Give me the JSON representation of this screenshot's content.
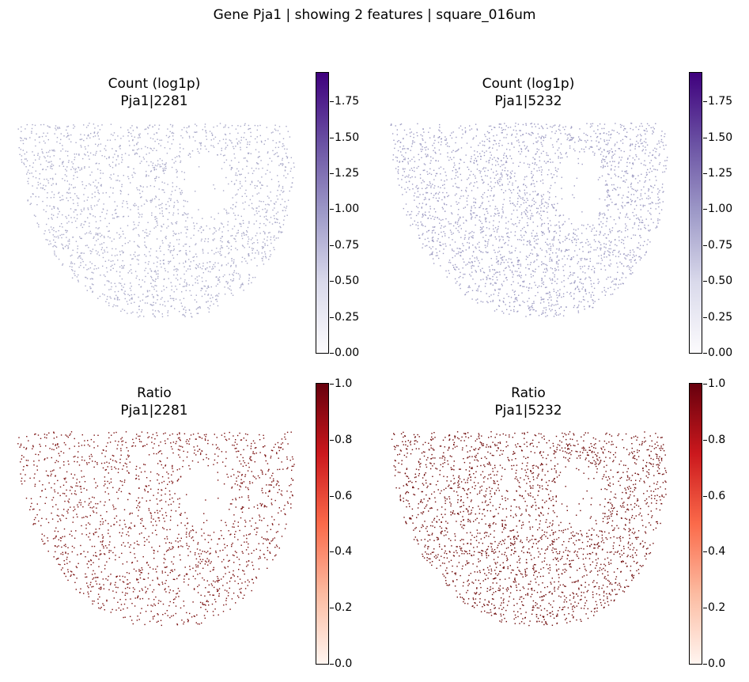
{
  "figure": {
    "suptitle": "Gene Pja1 | showing 2 features | square_016um"
  },
  "panels": [
    {
      "title_line1": "Count (log1p)",
      "title_line2": "Pja1|2281",
      "colormap": "purples",
      "colors": [
        "#fcfbfd",
        "#dadaeb",
        "#9e9ac8",
        "#6a51a3",
        "#3f007d"
      ],
      "dot_color": "#a9a9c8",
      "density": 0.55,
      "enriched_arc": false,
      "colorbar": {
        "min": 0.0,
        "max": 1.95,
        "ticks": [
          "0.00",
          "0.25",
          "0.50",
          "0.75",
          "1.00",
          "1.25",
          "1.50",
          "1.75"
        ],
        "tick_values": [
          0,
          0.25,
          0.5,
          0.75,
          1.0,
          1.25,
          1.5,
          1.75
        ]
      }
    },
    {
      "title_line1": "Count (log1p)",
      "title_line2": "Pja1|5232",
      "colormap": "purples",
      "colors": [
        "#fcfbfd",
        "#dadaeb",
        "#9e9ac8",
        "#6a51a3",
        "#3f007d"
      ],
      "dot_color": "#9f9dc4",
      "density": 0.65,
      "enriched_arc": true,
      "colorbar": {
        "min": 0.0,
        "max": 1.95,
        "ticks": [
          "0.00",
          "0.25",
          "0.50",
          "0.75",
          "1.00",
          "1.25",
          "1.50",
          "1.75"
        ],
        "tick_values": [
          0,
          0.25,
          0.5,
          0.75,
          1.0,
          1.25,
          1.5,
          1.75
        ]
      }
    },
    {
      "title_line1": "Ratio",
      "title_line2": "Pja1|2281",
      "colormap": "reds",
      "colors": [
        "#fff5f0",
        "#fcbba1",
        "#fb6a4a",
        "#cb181d",
        "#67000d"
      ],
      "dot_color": "#7a1010",
      "density": 0.45,
      "enriched_arc": false,
      "colorbar": {
        "min": 0.0,
        "max": 1.0,
        "ticks": [
          "0.0",
          "0.2",
          "0.4",
          "0.6",
          "0.8",
          "1.0"
        ],
        "tick_values": [
          0,
          0.2,
          0.4,
          0.6,
          0.8,
          1.0
        ]
      }
    },
    {
      "title_line1": "Ratio",
      "title_line2": "Pja1|5232",
      "colormap": "reds",
      "colors": [
        "#fff5f0",
        "#fcbba1",
        "#fb6a4a",
        "#cb181d",
        "#67000d"
      ],
      "dot_color": "#6e0a0a",
      "density": 0.6,
      "enriched_arc": true,
      "colorbar": {
        "min": 0.0,
        "max": 1.0,
        "ticks": [
          "0.0",
          "0.2",
          "0.4",
          "0.6",
          "0.8",
          "1.0"
        ],
        "tick_values": [
          0,
          0.2,
          0.4,
          0.6,
          0.8,
          1.0
        ]
      }
    }
  ],
  "chart_data": {
    "type": "scatter",
    "title": "Gene Pja1 | showing 2 features | square_016um",
    "grid": false,
    "panels": [
      {
        "title": "Count (log1p)\nPja1|2281",
        "colorbar_range": [
          0.0,
          1.95
        ]
      },
      {
        "title": "Count (log1p)\nPja1|5232",
        "colorbar_range": [
          0.0,
          1.95
        ]
      },
      {
        "title": "Ratio\nPja1|2281",
        "colorbar_range": [
          0.0,
          1.0
        ]
      },
      {
        "title": "Ratio\nPja1|5232",
        "colorbar_range": [
          0.0,
          1.0
        ]
      }
    ]
  }
}
